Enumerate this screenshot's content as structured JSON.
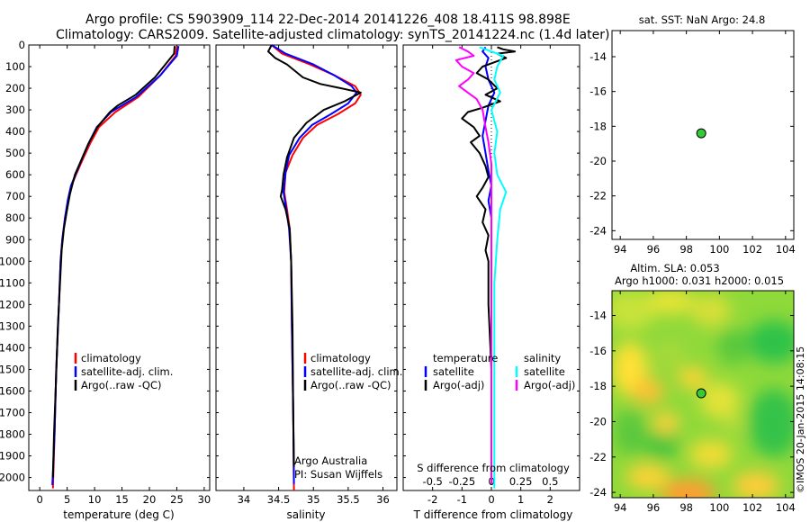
{
  "header": {
    "title_line1": "Argo profile: CS 5903909_114 22-Dec-2014 20141226_408 18.411S 98.898E",
    "title_line2": "Climatology: CARS2009. Satellite-adjusted climatology: synTS_20141224.nc (1.4d later)"
  },
  "colors": {
    "climatology": "#ff0000",
    "satellite": "#0000ff",
    "argo": "#000000",
    "sat_salinity": "#00ffff",
    "argo_salinity": "#ff00ff"
  },
  "chart_data": [
    {
      "id": "temperature",
      "type": "line",
      "xlabel": "temperature (deg C)",
      "xlim": [
        -2,
        31
      ],
      "xticks": [
        "0",
        "5",
        "10",
        "15",
        "20",
        "25",
        "30"
      ],
      "ylim": [
        0,
        2060
      ],
      "yticks": [
        "0",
        "100",
        "200",
        "300",
        "400",
        "500",
        "600",
        "700",
        "800",
        "900",
        "1000",
        "1100",
        "1200",
        "1300",
        "1400",
        "1500",
        "1600",
        "1700",
        "1800",
        "1900",
        "2000"
      ],
      "legend": [
        "climatology",
        "satellite-adj. clim.",
        "Argo(..raw -QC)"
      ],
      "series": [
        {
          "name": "climatology",
          "points": [
            [
              25.0,
              5
            ],
            [
              24.8,
              50
            ],
            [
              22,
              140
            ],
            [
              18,
              240
            ],
            [
              13.8,
              310
            ],
            [
              10.8,
              380
            ],
            [
              9.3,
              450
            ],
            [
              8.0,
              520
            ],
            [
              6.6,
              600
            ],
            [
              5.8,
              650
            ],
            [
              5.2,
              720
            ],
            [
              4.6,
              800
            ],
            [
              4.1,
              900
            ],
            [
              3.8,
              1000
            ],
            [
              3.5,
              1200
            ],
            [
              3.0,
              1500
            ],
            [
              2.7,
              1800
            ],
            [
              2.4,
              2050
            ]
          ]
        },
        {
          "name": "satellite-adj. clim.",
          "points": [
            [
              25.3,
              5
            ],
            [
              25.0,
              50
            ],
            [
              22,
              140
            ],
            [
              17.6,
              240
            ],
            [
              13.0,
              310
            ],
            [
              10.4,
              380
            ],
            [
              9.0,
              450
            ],
            [
              7.8,
              520
            ],
            [
              6.5,
              600
            ],
            [
              5.7,
              650
            ],
            [
              5.1,
              720
            ],
            [
              4.6,
              800
            ],
            [
              4.1,
              900
            ],
            [
              3.8,
              1000
            ],
            [
              3.5,
              1200
            ],
            [
              3.0,
              1500
            ],
            [
              2.7,
              1800
            ],
            [
              2.3,
              2035
            ]
          ]
        },
        {
          "name": "Argo(..raw -QC)",
          "points": [
            [
              24.6,
              5
            ],
            [
              24.5,
              40
            ],
            [
              21,
              150
            ],
            [
              17.5,
              230
            ],
            [
              14.2,
              280
            ],
            [
              12.8,
              310
            ],
            [
              10.5,
              380
            ],
            [
              8.8,
              460
            ],
            [
              7.6,
              530
            ],
            [
              6.4,
              600
            ],
            [
              5.5,
              690
            ],
            [
              5.0,
              760
            ],
            [
              4.4,
              850
            ],
            [
              4.0,
              950
            ],
            [
              3.7,
              1100
            ],
            [
              3.3,
              1300
            ],
            [
              2.9,
              1600
            ],
            [
              2.6,
              1800
            ],
            [
              2.4,
              2000
            ]
          ]
        }
      ]
    },
    {
      "id": "salinity",
      "type": "line",
      "xlabel": "salinity",
      "xlim": [
        33.6,
        36.2
      ],
      "xticks": [
        "34",
        "34.5",
        "35",
        "35.5",
        "36"
      ],
      "ylim": [
        0,
        2060
      ],
      "legend": [
        "climatology",
        "satellite-adj. clim.",
        "Argo(..raw -QC)"
      ],
      "annotations": [
        "Argo Australia",
        "PI: Susan Wijffels"
      ],
      "series": [
        {
          "name": "climatology",
          "points": [
            [
              34.4,
              0
            ],
            [
              34.55,
              40
            ],
            [
              34.95,
              90
            ],
            [
              35.3,
              140
            ],
            [
              35.6,
              190
            ],
            [
              35.68,
              230
            ],
            [
              35.6,
              270
            ],
            [
              35.35,
              320
            ],
            [
              35.05,
              370
            ],
            [
              34.85,
              430
            ],
            [
              34.7,
              510
            ],
            [
              34.6,
              590
            ],
            [
              34.58,
              680
            ],
            [
              34.62,
              760
            ],
            [
              34.66,
              850
            ],
            [
              34.68,
              1000
            ],
            [
              34.69,
              1300
            ],
            [
              34.71,
              1700
            ],
            [
              34.72,
              2060
            ]
          ]
        },
        {
          "name": "satellite-adj. clim.",
          "points": [
            [
              34.4,
              0
            ],
            [
              34.6,
              40
            ],
            [
              35.0,
              90
            ],
            [
              35.3,
              140
            ],
            [
              35.55,
              190
            ],
            [
              35.62,
              220
            ],
            [
              35.5,
              270
            ],
            [
              35.25,
              320
            ],
            [
              34.98,
              370
            ],
            [
              34.8,
              430
            ],
            [
              34.65,
              510
            ],
            [
              34.6,
              590
            ],
            [
              34.57,
              680
            ],
            [
              34.61,
              760
            ],
            [
              34.65,
              850
            ],
            [
              34.68,
              1000
            ],
            [
              34.69,
              1300
            ],
            [
              34.71,
              1700
            ],
            [
              34.72,
              2030
            ]
          ]
        },
        {
          "name": "Argo(..raw -QC)",
          "points": [
            [
              34.4,
              0
            ],
            [
              34.35,
              30
            ],
            [
              34.45,
              60
            ],
            [
              34.62,
              90
            ],
            [
              34.85,
              150
            ],
            [
              35.1,
              180
            ],
            [
              35.4,
              200
            ],
            [
              35.68,
              220
            ],
            [
              35.45,
              260
            ],
            [
              35.15,
              300
            ],
            [
              34.9,
              360
            ],
            [
              34.72,
              430
            ],
            [
              34.62,
              520
            ],
            [
              34.57,
              600
            ],
            [
              34.55,
              670
            ],
            [
              34.53,
              700
            ],
            [
              34.6,
              760
            ],
            [
              34.66,
              850
            ],
            [
              34.68,
              1000
            ],
            [
              34.7,
              1300
            ],
            [
              34.71,
              1700
            ],
            [
              34.72,
              1950
            ]
          ]
        }
      ]
    },
    {
      "id": "difference",
      "type": "line",
      "xlabel": "T difference from climatology",
      "top_xlabel": "S difference from climatology",
      "xlim": [
        -3,
        3
      ],
      "xticks": [
        "-2",
        "-1",
        "0",
        "1",
        "2"
      ],
      "top_xticks": [
        "-0.5",
        "-0.25",
        "0",
        "0.25",
        "0.5"
      ],
      "ylim": [
        0,
        2060
      ],
      "legend_headers": [
        "temperature",
        "salinity"
      ],
      "legend": [
        "satellite",
        "Argo(-adj)",
        "satellite",
        "Argo(-adj)"
      ],
      "series": [
        {
          "name": "satellite",
          "points": [
            [
              -0.2,
              10
            ],
            [
              -0.3,
              30
            ],
            [
              -0.1,
              60
            ],
            [
              -0.2,
              100
            ],
            [
              -0.1,
              160
            ],
            [
              0.1,
              220
            ],
            [
              -0.1,
              280
            ],
            [
              -0.2,
              350
            ],
            [
              -0.3,
              420
            ],
            [
              -0.2,
              500
            ],
            [
              -0.1,
              580
            ],
            [
              0,
              650
            ],
            [
              -0.1,
              720
            ],
            [
              0,
              800
            ],
            [
              0,
              1000
            ],
            [
              0,
              1400
            ],
            [
              0,
              1800
            ],
            [
              0,
              2030
            ]
          ]
        },
        {
          "name": "Argo(-adj)",
          "points": [
            [
              0.2,
              10
            ],
            [
              0.4,
              20
            ],
            [
              0.8,
              30
            ],
            [
              0.2,
              40
            ],
            [
              0.5,
              60
            ],
            [
              0.1,
              80
            ],
            [
              -0.3,
              100
            ],
            [
              -0.5,
              130
            ],
            [
              -0.1,
              160
            ],
            [
              0.2,
              200
            ],
            [
              -0.2,
              230
            ],
            [
              0.3,
              260
            ],
            [
              -0.3,
              290
            ],
            [
              -0.8,
              310
            ],
            [
              -1.0,
              340
            ],
            [
              -0.6,
              380
            ],
            [
              -0.4,
              420
            ],
            [
              -0.7,
              450
            ],
            [
              -0.4,
              500
            ],
            [
              -0.2,
              560
            ],
            [
              -0.1,
              610
            ],
            [
              -0.3,
              660
            ],
            [
              -0.5,
              700
            ],
            [
              -0.2,
              760
            ],
            [
              -0.3,
              820
            ],
            [
              -0.1,
              880
            ],
            [
              -0.2,
              950
            ],
            [
              -0.1,
              1000
            ],
            [
              -0.1,
              1200
            ],
            [
              0,
              1500
            ],
            [
              0,
              1800
            ],
            [
              0,
              2000
            ]
          ]
        },
        {
          "name": "satellite",
          "points": [
            [
              -0.4,
              10
            ],
            [
              0.4,
              50
            ],
            [
              0.2,
              100
            ],
            [
              0.1,
              160
            ],
            [
              0.3,
              220
            ],
            [
              0,
              300
            ],
            [
              0.2,
              400
            ],
            [
              0.1,
              500
            ],
            [
              0.2,
              600
            ],
            [
              0.5,
              680
            ],
            [
              0.3,
              760
            ],
            [
              0.2,
              900
            ],
            [
              0.1,
              1100
            ],
            [
              0.1,
              1400
            ],
            [
              0.1,
              1800
            ],
            [
              0.1,
              2050
            ]
          ]
        },
        {
          "name": "Argo(-adj)",
          "points": [
            [
              -1.1,
              10
            ],
            [
              -0.8,
              30
            ],
            [
              -0.6,
              50
            ],
            [
              -1.2,
              70
            ],
            [
              -1.0,
              100
            ],
            [
              -0.6,
              130
            ],
            [
              -0.8,
              160
            ],
            [
              -1.1,
              190
            ],
            [
              -0.8,
              220
            ],
            [
              -0.5,
              250
            ],
            [
              -0.3,
              300
            ],
            [
              -0.2,
              380
            ],
            [
              -0.1,
              450
            ],
            [
              0,
              550
            ],
            [
              0,
              800
            ],
            [
              0,
              1200
            ],
            [
              0,
              2030
            ]
          ]
        }
      ]
    },
    {
      "id": "sst-map",
      "type": "scatter",
      "title": "sat. SST: NaN Argo: 24.8",
      "xlim": [
        93.5,
        104.5
      ],
      "ylim": [
        -24.5,
        -12.5
      ],
      "xticks": [
        "94",
        "96",
        "98",
        "100",
        "102",
        "104"
      ],
      "yticks": [
        "-14",
        "-16",
        "-18",
        "-20",
        "-22",
        "-24"
      ],
      "points": [
        [
          98.9,
          -18.4
        ]
      ],
      "marker_color": "#33cc33"
    },
    {
      "id": "sla-map",
      "type": "heatmap",
      "title_line1": "Altim. SLA: 0.053",
      "title_line2": "Argo h1000: 0.031 h2000: 0.015",
      "xlim": [
        93.5,
        104.5
      ],
      "ylim": [
        -24.3,
        -12.6
      ],
      "xticks": [
        "94",
        "96",
        "98",
        "100",
        "102",
        "104"
      ],
      "yticks": [
        "-14",
        "-16",
        "-18",
        "-20",
        "-22",
        "-24"
      ],
      "points": [
        [
          98.9,
          -18.4
        ]
      ],
      "marker_color": "#33cc33"
    }
  ],
  "side_label": "©IMOS 20-Jan-2015 14:08:15"
}
